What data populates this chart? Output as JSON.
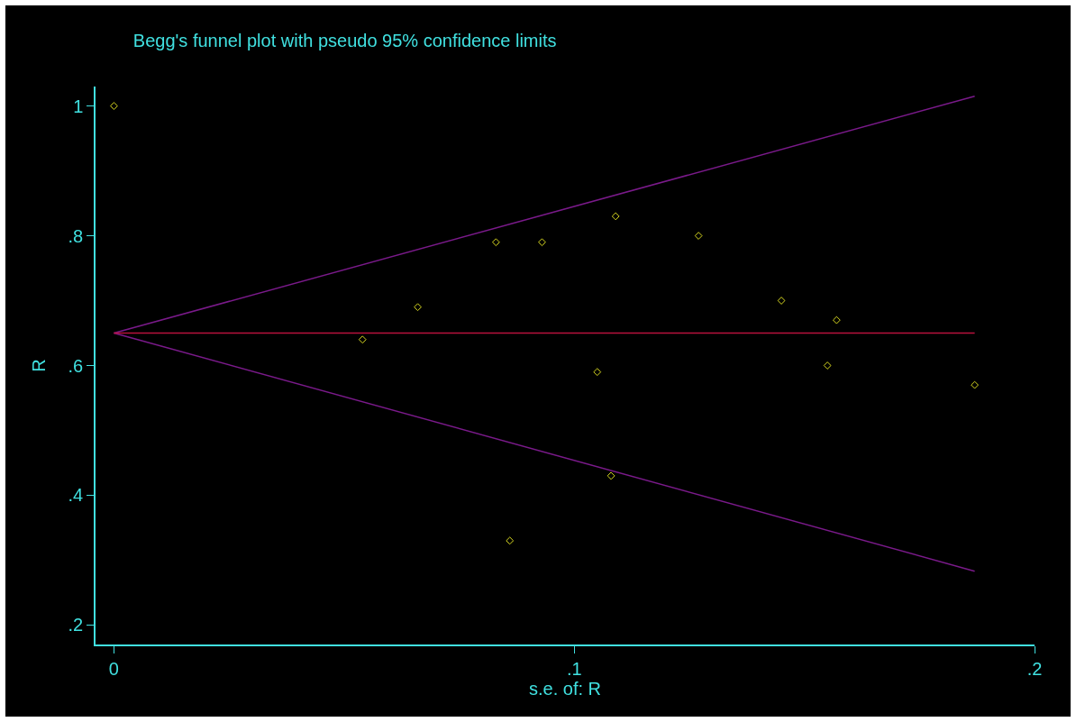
{
  "chart_data": {
    "type": "scatter",
    "title": "Begg's funnel plot with pseudo 95% confidence limits",
    "xlabel": "s.e. of: R",
    "ylabel": "R",
    "xlim": [
      -0.004,
      0.2
    ],
    "ylim": [
      0.17,
      1.03
    ],
    "xticks": [
      0,
      {
        "value": 0.1,
        "label": ".1"
      },
      {
        "value": 0.2,
        "label": ".2"
      }
    ],
    "yticks": [
      {
        "value": 0.2,
        "label": ".2"
      },
      {
        "value": 0.4,
        "label": ".4"
      },
      {
        "value": 0.6,
        "label": ".6"
      },
      {
        "value": 0.8,
        "label": ".8"
      },
      1
    ],
    "grid": false,
    "series": [
      {
        "type": "line",
        "color": "#7a1a8a",
        "marker": "none",
        "line_style": "solid",
        "x": [
          0,
          0.187
        ],
        "values": [
          0.65,
          1.015
        ]
      },
      {
        "type": "line",
        "color": "#7a1a8a",
        "marker": "none",
        "line_style": "solid",
        "x": [
          0,
          0.187
        ],
        "values": [
          0.65,
          0.283
        ]
      },
      {
        "type": "line",
        "color": "#b8123c",
        "marker": "none",
        "line_style": "solid",
        "x": [
          0,
          0.187
        ],
        "values": [
          0.65,
          0.65
        ]
      },
      {
        "color": "#d8d820",
        "marker": "diamond",
        "x": [
          0,
          0.054,
          0.066,
          0.083,
          0.086,
          0.093,
          0.105,
          0.109,
          0.108,
          0.127,
          0.145,
          0.155,
          0.157,
          0.187
        ],
        "values": [
          1.0,
          0.64,
          0.69,
          0.79,
          0.33,
          0.79,
          0.59,
          0.83,
          0.43,
          0.8,
          0.7,
          0.6,
          0.67,
          0.57
        ]
      }
    ]
  }
}
